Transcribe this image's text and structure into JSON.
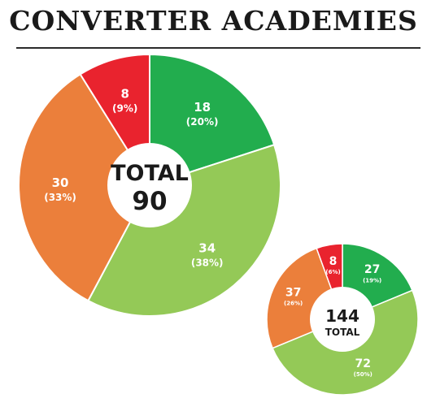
{
  "title": "CONVERTER ACADEMIES",
  "colors": {
    "green": "#22ad4e",
    "light_green": "#94c957",
    "orange": "#eb7f3b",
    "red": "#e9232e"
  },
  "chart_data": [
    {
      "type": "pie",
      "center_label": "TOTAL",
      "center_value": "90",
      "slices": [
        {
          "value": 18,
          "value_label": "18",
          "pct_label": "(20%)",
          "color": "#22ad4e"
        },
        {
          "value": 34,
          "value_label": "34",
          "pct_label": "(38%)",
          "color": "#94c957"
        },
        {
          "value": 30,
          "value_label": "30",
          "pct_label": "(33%)",
          "color": "#eb7f3b"
        },
        {
          "value": 8,
          "value_label": "8",
          "pct_label": "(9%)",
          "color": "#e9232e"
        }
      ]
    },
    {
      "type": "pie",
      "center_value": "144",
      "center_label": "TOTAL",
      "slices": [
        {
          "value": 27,
          "value_label": "27",
          "pct_label": "(19%)",
          "color": "#22ad4e"
        },
        {
          "value": 72,
          "value_label": "72",
          "pct_label": "(50%)",
          "color": "#94c957"
        },
        {
          "value": 37,
          "value_label": "37",
          "pct_label": "(26%)",
          "color": "#eb7f3b"
        },
        {
          "value": 8,
          "value_label": "8",
          "pct_label": "(6%)",
          "color": "#e9232e"
        }
      ]
    }
  ]
}
